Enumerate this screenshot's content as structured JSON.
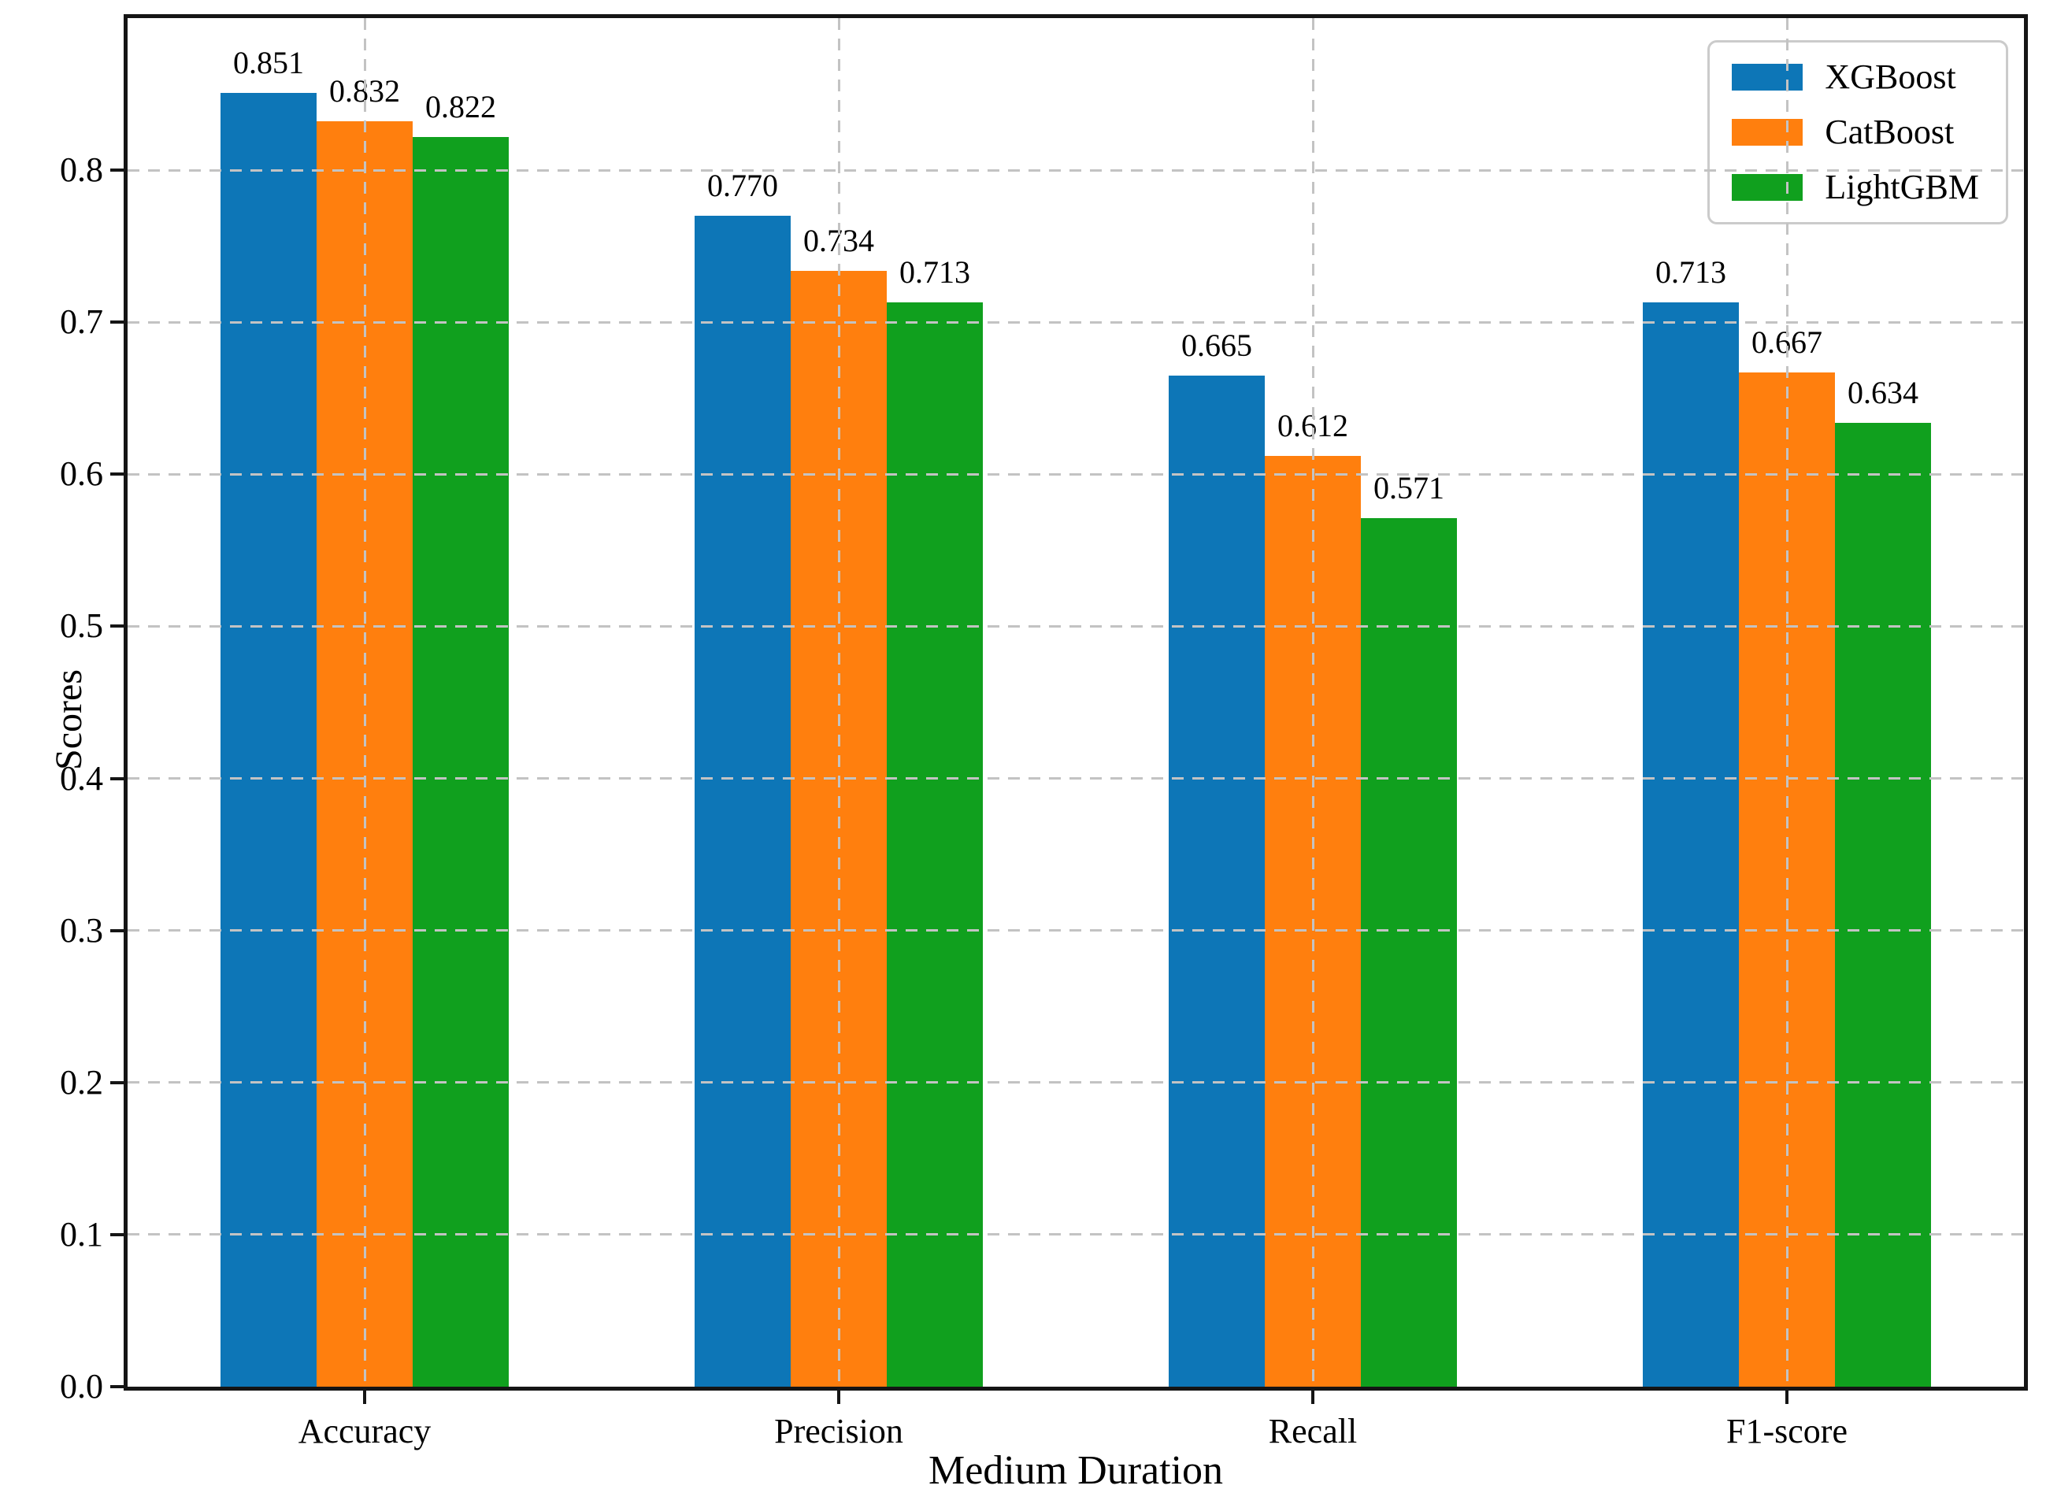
{
  "chart_data": {
    "type": "bar",
    "title": "",
    "xlabel": "Medium Duration",
    "ylabel": "Scores",
    "categories": [
      "Accuracy",
      "Precision",
      "Recall",
      "F1-score"
    ],
    "series": [
      {
        "name": "XGBoost",
        "color": "#0d76b7",
        "values": [
          0.851,
          0.77,
          0.665,
          0.713
        ],
        "labels": [
          "0.851",
          "0.770",
          "0.665",
          "0.713"
        ]
      },
      {
        "name": "CatBoost",
        "color": "#ff7f0e",
        "values": [
          0.832,
          0.734,
          0.612,
          0.667
        ],
        "labels": [
          "0.832",
          "0.734",
          "0.612",
          "0.667"
        ]
      },
      {
        "name": "LightGBM",
        "color": "#10a01e",
        "values": [
          0.822,
          0.713,
          0.571,
          0.634
        ],
        "labels": [
          "0.822",
          "0.713",
          "0.571",
          "0.634"
        ]
      }
    ],
    "ylim": [
      0,
      0.9
    ],
    "yticks": [
      "0.0",
      "0.1",
      "0.2",
      "0.3",
      "0.4",
      "0.5",
      "0.6",
      "0.7",
      "0.8"
    ],
    "grid": "dashed",
    "legend_position": "upper right",
    "grid_color": "#c3c3c3",
    "axis_color": "#151515"
  }
}
